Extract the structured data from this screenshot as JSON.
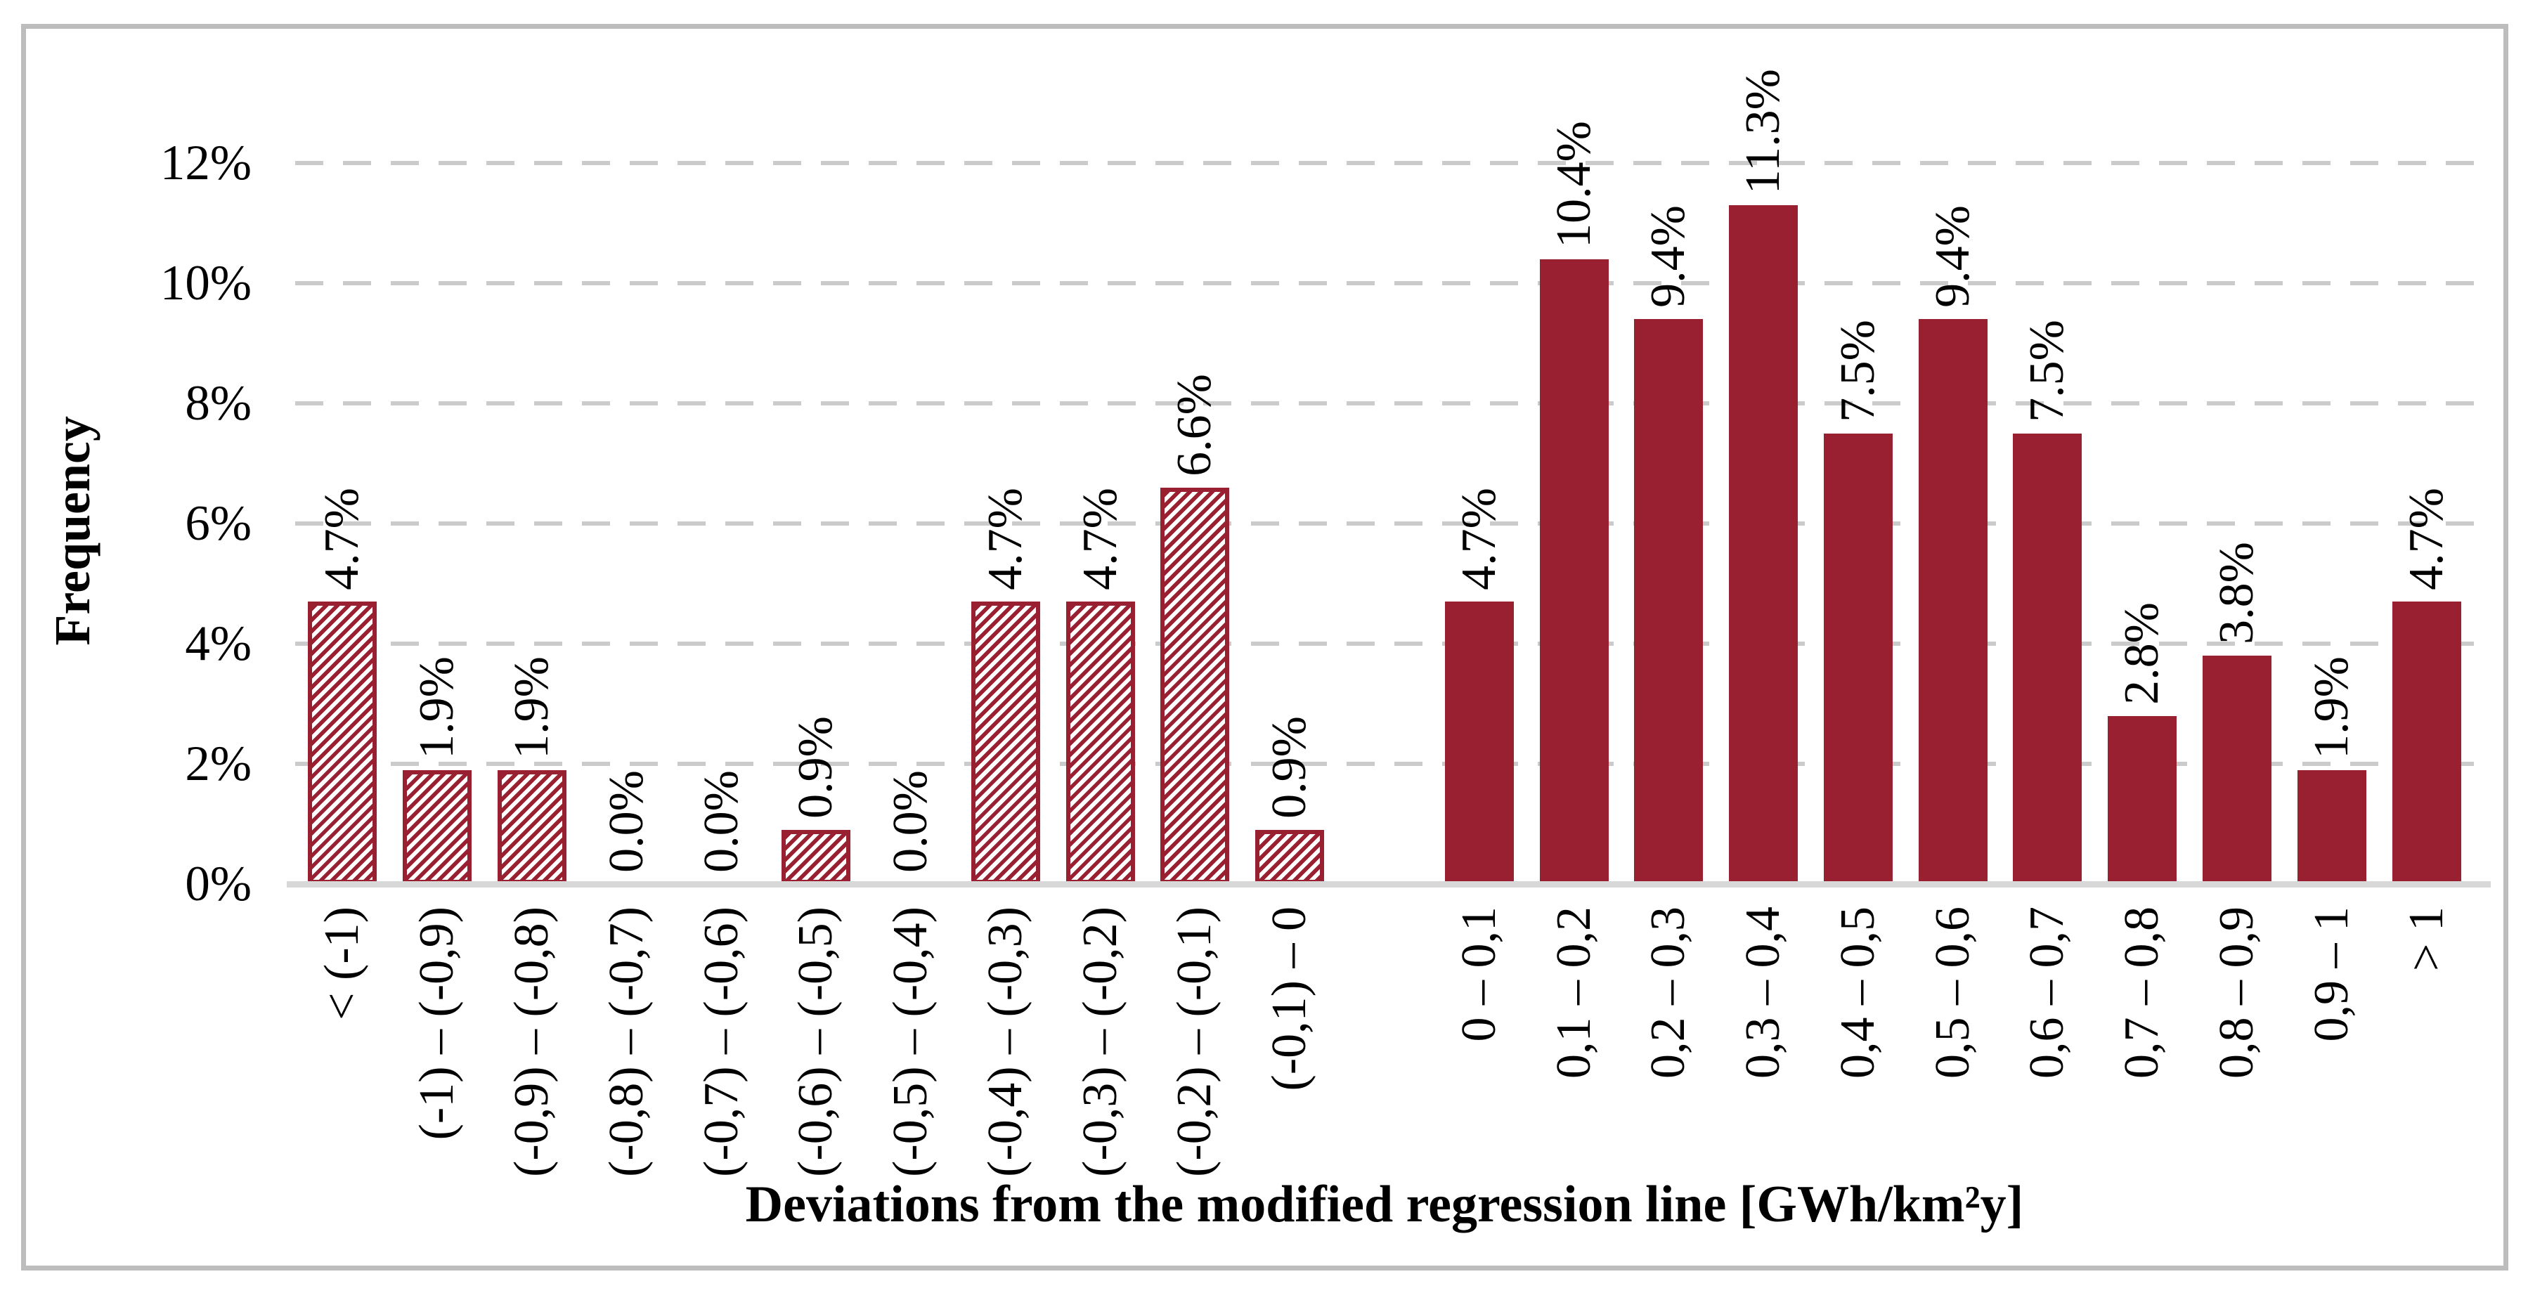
{
  "chart_data": {
    "type": "bar",
    "title": "",
    "xlabel": "Deviations from the modified regression line [GWh/km²y]",
    "ylabel": "Frequency",
    "ylim": [
      0,
      12
    ],
    "y_unit": "percent",
    "y_ticks": [
      0,
      2,
      4,
      6,
      8,
      10,
      12
    ],
    "y_tick_labels": [
      "0%",
      "2%",
      "4%",
      "6%",
      "8%",
      "10%",
      "12%"
    ],
    "grid": "horizontal dashed gridlines at each y tick above 0",
    "legend_position": "none",
    "label_rotation_degrees": 90,
    "group_gap_after_index": 10,
    "categories": [
      "< (-1)",
      "(-1) – (-0,9)",
      "(-0,9) – (-0,8)",
      "(-0,8) – (-0,7)",
      "(-0,7) – (-0,6)",
      "(-0,6) – (-0,5)",
      "(-0,5) – (-0,4)",
      "(-0,4) – (-0,3)",
      "(-0,3) – (-0,2)",
      "(-0,2) – (-0,1)",
      "(-0,1) – 0",
      "0 – 0,1",
      "0,1 – 0,2",
      "0,2 – 0,3",
      "0,3 – 0,4",
      "0,4 – 0,5",
      "0,5 – 0,6",
      "0,6 – 0,7",
      "0,7 – 0,8",
      "0,8 – 0,9",
      "0,9 – 1",
      "> 1"
    ],
    "values": [
      4.7,
      1.9,
      1.9,
      0.0,
      0.0,
      0.9,
      0.0,
      4.7,
      4.7,
      6.6,
      0.9,
      4.7,
      10.4,
      9.4,
      11.3,
      7.5,
      9.4,
      7.5,
      2.8,
      3.8,
      1.9,
      4.7
    ],
    "data_labels": [
      "4.7%",
      "1.9%",
      "1.9%",
      "0.0%",
      "0.0%",
      "0.9%",
      "0.0%",
      "4.7%",
      "4.7%",
      "6.6%",
      "0.9%",
      "4.7%",
      "10.4%",
      "9.4%",
      "11.3%",
      "7.5%",
      "9.4%",
      "7.5%",
      "2.8%",
      "3.8%",
      "1.9%",
      "4.7%"
    ],
    "bar_styles": [
      "hatched",
      "hatched",
      "hatched",
      "hatched",
      "hatched",
      "hatched",
      "hatched",
      "hatched",
      "hatched",
      "hatched",
      "hatched",
      "solid",
      "solid",
      "solid",
      "solid",
      "solid",
      "solid",
      "solid",
      "solid",
      "solid",
      "solid",
      "solid"
    ],
    "hatch_pattern": "diagonal stripes bottom-left to top-right, red on white, solid red outline",
    "colors": {
      "bar": "#992031",
      "gridline": "#CBCBCB",
      "axis_line": "#D8D8D8",
      "frame": "#BDBDBD",
      "text": "#000000",
      "background": "#FFFFFF"
    }
  }
}
